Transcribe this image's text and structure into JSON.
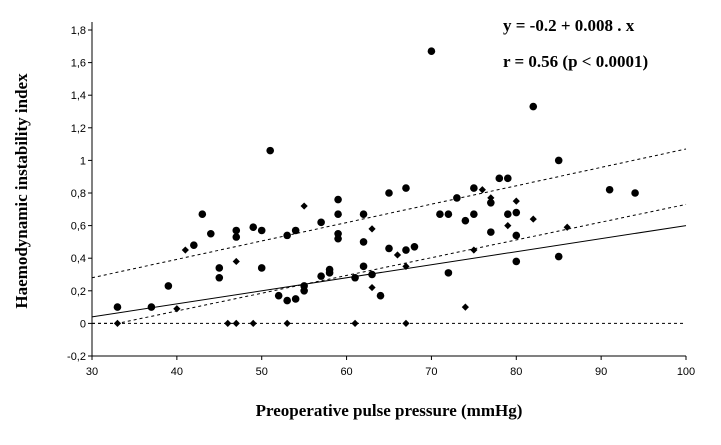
{
  "chart_data": {
    "type": "scatter",
    "title": "",
    "xlabel": "Preoperative pulse pressure (mmHg)",
    "ylabel": "Haemodynamic instability index",
    "xlim": [
      30,
      100
    ],
    "ylim": [
      -0.2,
      1.8
    ],
    "x_ticks": [
      "30",
      "40",
      "50",
      "60",
      "70",
      "80",
      "90",
      "100"
    ],
    "y_ticks": [
      "-0,2",
      "0",
      "0,2",
      "0,4",
      "0,6",
      "0,8",
      "1",
      "1,2",
      "1,4",
      "1,6",
      "1,8"
    ],
    "grid": false,
    "annotations": [
      "y = -0.2 + 0.008 . x",
      "r = 0.56 (p < 0.0001)"
    ],
    "zero_line_y": 0,
    "regression": {
      "intercept": -0.2,
      "slope": 0.008
    },
    "confidence_band": {
      "upper": [
        [
          30,
          0.28
        ],
        [
          100,
          1.07
        ]
      ],
      "lower": [
        [
          30,
          0.0
        ],
        [
          33,
          0.0
        ],
        [
          100,
          0.73
        ]
      ]
    },
    "points_circle": [
      [
        33,
        0.1
      ],
      [
        37,
        0.1
      ],
      [
        39,
        0.23
      ],
      [
        42,
        0.48
      ],
      [
        43,
        0.67
      ],
      [
        44,
        0.55
      ],
      [
        45,
        0.34
      ],
      [
        45,
        0.28
      ],
      [
        47,
        0.57
      ],
      [
        47,
        0.53
      ],
      [
        49,
        0.59
      ],
      [
        50,
        0.57
      ],
      [
        50,
        0.34
      ],
      [
        51,
        1.06
      ],
      [
        52,
        0.17
      ],
      [
        53,
        0.54
      ],
      [
        53,
        0.14
      ],
      [
        54,
        0.57
      ],
      [
        54,
        0.15
      ],
      [
        55,
        0.2
      ],
      [
        55,
        0.23
      ],
      [
        57,
        0.62
      ],
      [
        57,
        0.29
      ],
      [
        58,
        0.33
      ],
      [
        58,
        0.31
      ],
      [
        59,
        0.76
      ],
      [
        59,
        0.67
      ],
      [
        59,
        0.55
      ],
      [
        59,
        0.52
      ],
      [
        61,
        0.28
      ],
      [
        62,
        0.67
      ],
      [
        62,
        0.5
      ],
      [
        62,
        0.35
      ],
      [
        63,
        0.3
      ],
      [
        64,
        0.17
      ],
      [
        65,
        0.8
      ],
      [
        65,
        0.46
      ],
      [
        67,
        0.83
      ],
      [
        67,
        0.45
      ],
      [
        68,
        0.47
      ],
      [
        70,
        1.67
      ],
      [
        71,
        0.67
      ],
      [
        72,
        0.67
      ],
      [
        72,
        0.31
      ],
      [
        73,
        0.77
      ],
      [
        74,
        0.63
      ],
      [
        75,
        0.83
      ],
      [
        75,
        0.67
      ],
      [
        77,
        0.74
      ],
      [
        77,
        0.56
      ],
      [
        78,
        0.89
      ],
      [
        79,
        0.89
      ],
      [
        79,
        0.67
      ],
      [
        80,
        0.68
      ],
      [
        80,
        0.54
      ],
      [
        80,
        0.38
      ],
      [
        82,
        1.33
      ],
      [
        85,
        1.0
      ],
      [
        85,
        0.41
      ],
      [
        91,
        0.82
      ],
      [
        94,
        0.8
      ]
    ],
    "points_diamond": [
      [
        33,
        0.0
      ],
      [
        40,
        0.09
      ],
      [
        41,
        0.45
      ],
      [
        46,
        0.0
      ],
      [
        47,
        0.0
      ],
      [
        47,
        0.38
      ],
      [
        49,
        0.0
      ],
      [
        53,
        0.0
      ],
      [
        55,
        0.72
      ],
      [
        61,
        0.0
      ],
      [
        63,
        0.58
      ],
      [
        63,
        0.22
      ],
      [
        66,
        0.42
      ],
      [
        67,
        0.35
      ],
      [
        67,
        0.0
      ],
      [
        74,
        0.1
      ],
      [
        75,
        0.45
      ],
      [
        76,
        0.82
      ],
      [
        77,
        0.77
      ],
      [
        79,
        0.6
      ],
      [
        80,
        0.75
      ],
      [
        82,
        0.64
      ],
      [
        86,
        0.59
      ]
    ]
  }
}
